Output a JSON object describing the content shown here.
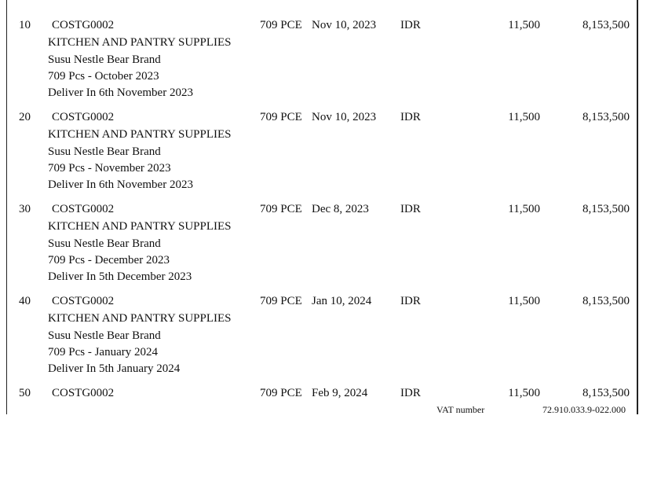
{
  "lines": [
    {
      "no": "10",
      "code": "COSTG0002",
      "qty": "709 PCE",
      "date": "Nov 10, 2023",
      "currency": "IDR",
      "price": "11,500",
      "amount": "8,153,500",
      "desc": [
        "KITCHEN AND PANTRY SUPPLIES",
        "Susu Nestle Bear Brand",
        "709 Pcs - October 2023",
        "Deliver In 6th November 2023"
      ]
    },
    {
      "no": "20",
      "code": "COSTG0002",
      "qty": "709 PCE",
      "date": "Nov 10, 2023",
      "currency": "IDR",
      "price": "11,500",
      "amount": "8,153,500",
      "desc": [
        "KITCHEN AND PANTRY SUPPLIES",
        "Susu Nestle Bear Brand",
        "709 Pcs - November 2023",
        "Deliver In 6th November 2023"
      ]
    },
    {
      "no": "30",
      "code": "COSTG0002",
      "qty": "709 PCE",
      "date": "Dec 8, 2023",
      "currency": "IDR",
      "price": "11,500",
      "amount": "8,153,500",
      "desc": [
        "KITCHEN AND PANTRY SUPPLIES",
        "Susu Nestle Bear Brand",
        "709 Pcs - December 2023",
        "Deliver In 5th December 2023"
      ]
    },
    {
      "no": "40",
      "code": "COSTG0002",
      "qty": "709 PCE",
      "date": "Jan 10, 2024",
      "currency": "IDR",
      "price": "11,500",
      "amount": "8,153,500",
      "desc": [
        "KITCHEN AND PANTRY SUPPLIES",
        "Susu Nestle Bear Brand",
        "709 Pcs - January 2024",
        "Deliver In 5th January 2024"
      ]
    },
    {
      "no": "50",
      "code": "COSTG0002",
      "qty": "709 PCE",
      "date": "Feb 9, 2024",
      "currency": "IDR",
      "price": "11,500",
      "amount": "8,153,500",
      "desc": []
    }
  ],
  "footer": {
    "vat_label": "VAT number",
    "vat_value": "72.910.033.9-022.000"
  }
}
